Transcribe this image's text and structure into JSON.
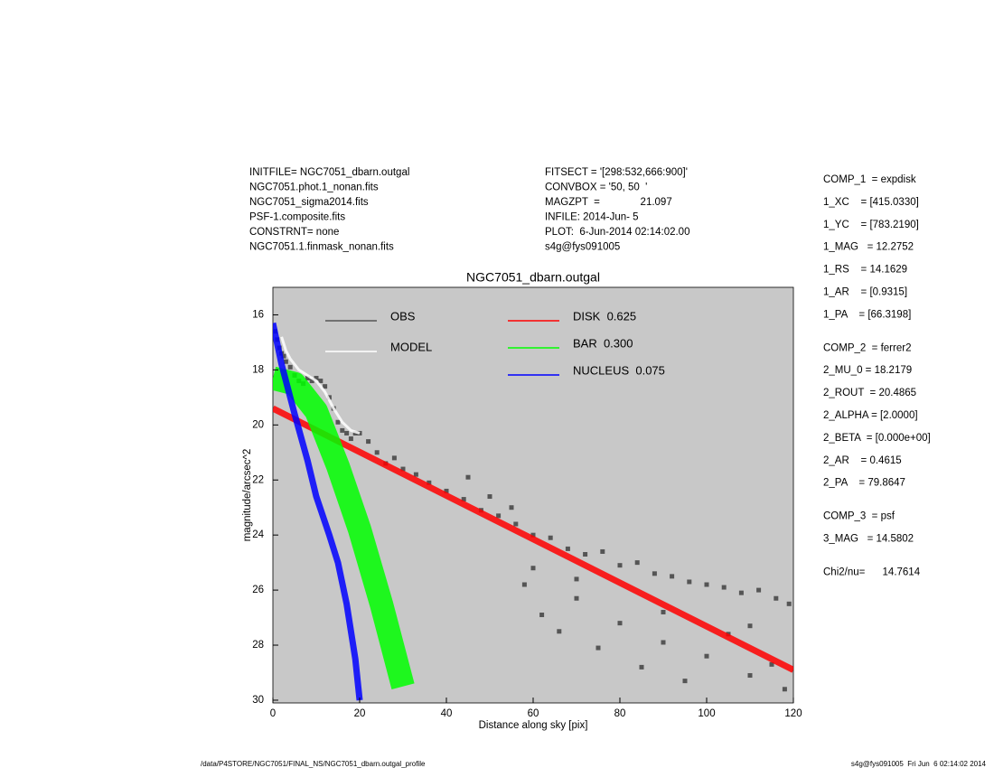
{
  "header_left": [
    "INITFILE= NGC7051_dbarn.outgal",
    "NGC7051.phot.1_nonan.fits",
    "NGC7051_sigma2014.fits",
    "PSF-1.composite.fits",
    "CONSTRNT= none",
    "NGC7051.1.finmask_nonan.fits"
  ],
  "header_middle": [
    "FITSECT = '[298:532,666:900]'",
    "CONVBOX = '50, 50  '",
    "MAGZPT  =              21.097",
    "INFILE: 2014-Jun- 5",
    "PLOT:  6-Jun-2014 02:14:02.00",
    "s4g@fys091005"
  ],
  "parameters": [
    [
      "COMP_1  = expdisk",
      "1_XC    = [415.0330]",
      "1_YC    = [783.2190]",
      "1_MAG   = 12.2752",
      "1_RS    = 14.1629",
      "1_AR    = [0.9315]",
      "1_PA    = [66.3198]"
    ],
    [
      "COMP_2  = ferrer2",
      "2_MU_0 = 18.2179",
      "2_ROUT  = 20.4865",
      "2_ALPHA = [2.0000]",
      "2_BETA  = [0.000e+00]",
      "2_AR    = 0.4615",
      "2_PA    = 79.8647"
    ],
    [
      "COMP_3  = psf",
      "3_MAG   = 14.5802"
    ],
    [
      "Chi2/nu=      14.7614"
    ]
  ],
  "footer_left": "/data/P4STORE/NGC7051/FINAL_NS/NGC7051_dbarn.outgal_profile",
  "footer_right": "s4g@fys091005  Fri Jun  6 02:14:02 2014",
  "chart_data": {
    "type": "scatter",
    "title": "NGC7051_dbarn.outgal",
    "x_label": "Distance along sky [pix]",
    "y_label": "magnitude/arcsec^2",
    "xlim": [
      0,
      120
    ],
    "ylim": [
      15,
      30.1
    ],
    "y_inverted": true,
    "xticks": [
      0,
      20,
      40,
      60,
      80,
      100,
      120
    ],
    "yticks": [
      16,
      18,
      20,
      22,
      24,
      26,
      28,
      30
    ],
    "background": "#c8c8c8",
    "series": [
      {
        "name": "OBS",
        "color": "#555555",
        "mark": "points",
        "x": [
          0.5,
          1,
          1.5,
          2,
          2.5,
          3,
          4,
          5,
          6,
          7,
          8,
          9,
          10,
          11,
          12,
          13,
          14,
          15,
          16,
          17,
          18,
          19,
          20,
          22,
          24,
          26,
          28,
          30,
          33,
          36,
          40,
          44,
          48,
          52,
          56,
          60,
          64,
          68,
          72,
          76,
          80,
          84,
          88,
          92,
          96,
          100,
          104,
          108,
          112,
          116,
          119,
          45,
          50,
          55,
          58,
          62,
          66,
          70,
          75,
          80,
          85,
          90,
          95,
          100,
          105,
          110,
          115,
          118,
          60,
          70,
          90,
          110
        ],
        "values": [
          16.6,
          16.9,
          17.2,
          17.4,
          17.5,
          17.7,
          17.9,
          18.2,
          18.4,
          18.5,
          18.3,
          18.4,
          18.3,
          18.4,
          18.6,
          19.0,
          19.4,
          19.9,
          20.2,
          20.3,
          20.5,
          20.3,
          20.3,
          20.6,
          21.0,
          21.4,
          21.2,
          21.6,
          21.8,
          22.1,
          22.4,
          22.7,
          23.1,
          23.3,
          23.6,
          24.0,
          24.1,
          24.5,
          24.7,
          24.6,
          25.1,
          25.0,
          25.4,
          25.5,
          25.7,
          25.8,
          25.9,
          26.1,
          26.0,
          26.3,
          26.5,
          21.9,
          22.6,
          23.0,
          25.8,
          26.9,
          27.5,
          26.3,
          28.1,
          27.2,
          28.8,
          27.9,
          29.3,
          28.4,
          27.6,
          29.1,
          28.7,
          29.6,
          25.2,
          25.6,
          26.8,
          27.3
        ]
      },
      {
        "name": "MODEL",
        "color": "#ffffff",
        "mark": "line",
        "x": [
          2,
          3,
          4,
          6,
          8,
          10,
          12,
          14,
          16,
          18,
          20
        ],
        "values": [
          16.8,
          17.3,
          17.6,
          18.0,
          18.2,
          18.4,
          18.8,
          19.4,
          19.9,
          20.2,
          20.3
        ]
      },
      {
        "name": "DISK  0.625",
        "color": "#ff0000",
        "mark": "band",
        "x": [
          0,
          120
        ],
        "values": [
          19.4,
          28.9
        ]
      },
      {
        "name": "BAR  0.300",
        "color": "#00ff00",
        "mark": "wideband",
        "x": [
          0,
          5,
          10,
          15,
          20,
          25,
          30
        ],
        "values": [
          18.3,
          18.5,
          19.5,
          21.5,
          23.8,
          26.5,
          29.5
        ]
      },
      {
        "name": "NUCLEUS  0.075",
        "color": "#0000ff",
        "mark": "band",
        "x": [
          0,
          2,
          5,
          8,
          10,
          13,
          15,
          17,
          19,
          20
        ],
        "values": [
          16.3,
          17.8,
          19.6,
          21.3,
          22.6,
          24.0,
          25.0,
          26.5,
          28.5,
          30
        ]
      }
    ]
  }
}
